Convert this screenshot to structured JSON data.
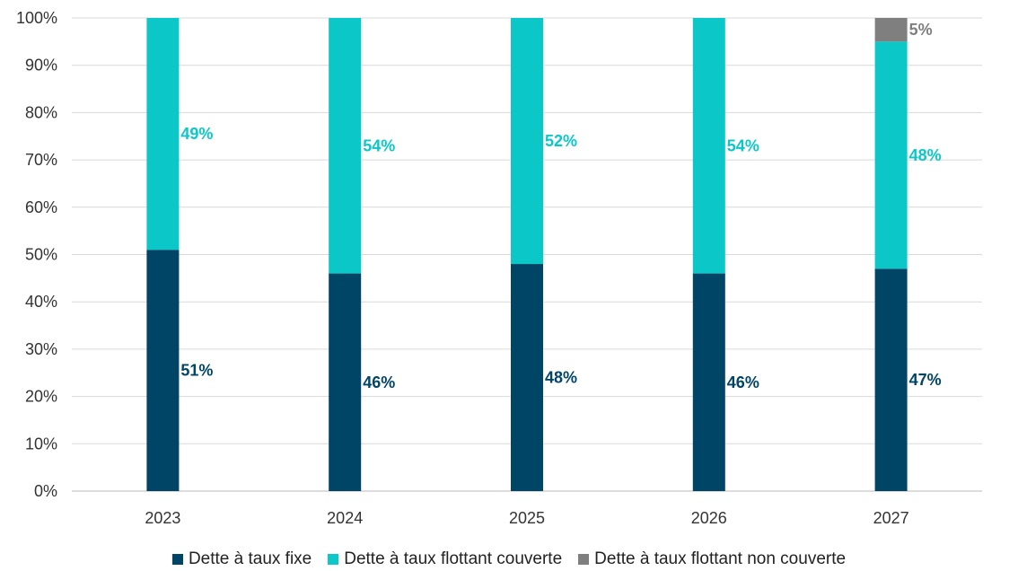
{
  "chart_data": {
    "type": "bar",
    "stacked": true,
    "categories": [
      "2023",
      "2024",
      "2025",
      "2026",
      "2027"
    ],
    "series": [
      {
        "name": "Dette à taux fixe",
        "color": "#004566",
        "label_color": "#004566",
        "values": [
          51,
          46,
          48,
          46,
          47
        ],
        "labels": [
          "51%",
          "46%",
          "48%",
          "46%",
          "47%"
        ]
      },
      {
        "name": "Dette à taux flottant couverte",
        "color": "#0CC7C8",
        "label_color": "#0CC7C8",
        "values": [
          49,
          54,
          52,
          54,
          48
        ],
        "labels": [
          "49%",
          "54%",
          "52%",
          "54%",
          "48%"
        ]
      },
      {
        "name": "Dette à taux flottant non couverte",
        "color": "#7F7F7F",
        "label_color": "#7F7F7F",
        "values": [
          0,
          0,
          0,
          0,
          5
        ],
        "labels": [
          "",
          "",
          "",
          "",
          "5%"
        ]
      }
    ],
    "ylim": [
      0,
      100
    ],
    "yticks": [
      "0%",
      "10%",
      "20%",
      "30%",
      "40%",
      "50%",
      "60%",
      "70%",
      "80%",
      "90%",
      "100%"
    ],
    "grid": true,
    "legend_position": "bottom"
  }
}
